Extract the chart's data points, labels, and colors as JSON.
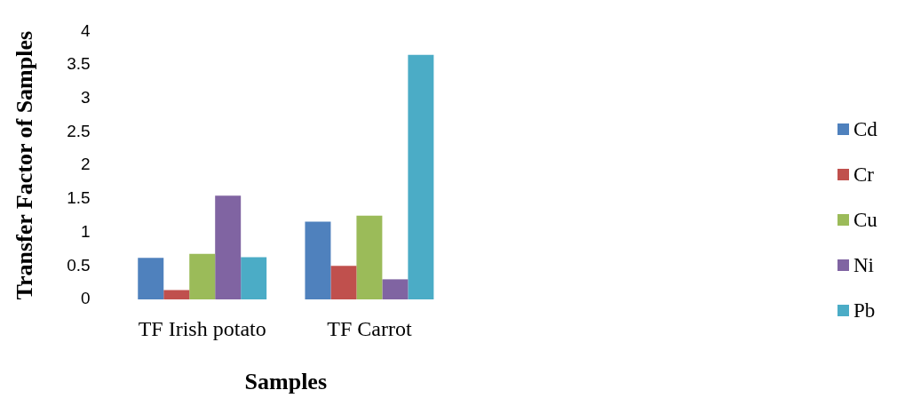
{
  "chart_data": {
    "type": "bar",
    "xlabel": "Samples",
    "ylabel": "Transfer Factor of Samples",
    "categories": [
      "TF Irish potato",
      "TF Carrot"
    ],
    "series": [
      {
        "name": "Cd",
        "color": "#4f81bd",
        "values": [
          0.62,
          1.16
        ]
      },
      {
        "name": "Cr",
        "color": "#c0504d",
        "values": [
          0.14,
          0.5
        ]
      },
      {
        "name": "Cu",
        "color": "#9bbb59",
        "values": [
          0.68,
          1.25
        ]
      },
      {
        "name": "Ni",
        "color": "#8064a2",
        "values": [
          1.55,
          0.3
        ]
      },
      {
        "name": "Pb",
        "color": "#4bacc6",
        "values": [
          0.63,
          3.65
        ]
      }
    ],
    "ylim": [
      0,
      4
    ],
    "yticks": [
      0,
      0.5,
      1,
      1.5,
      2,
      2.5,
      3,
      3.5,
      4
    ],
    "grid": false,
    "legend": "right"
  }
}
